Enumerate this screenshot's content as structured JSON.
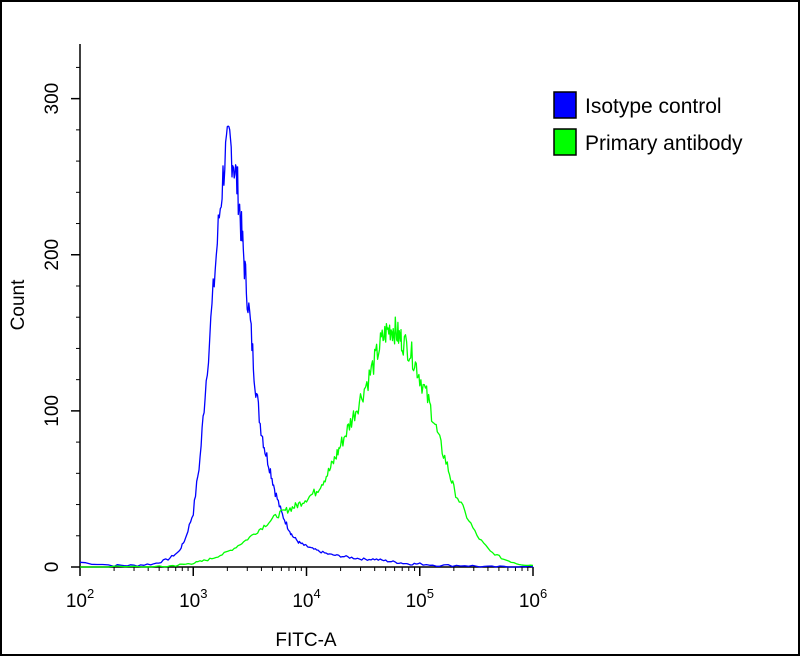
{
  "chart_data": {
    "type": "line",
    "title": "",
    "xlabel": "FITC-A",
    "ylabel": "Count",
    "x_scale": "log",
    "xlim": [
      100,
      1000000
    ],
    "ylim": [
      0,
      335
    ],
    "x_ticks": [
      {
        "value": 100,
        "base": "10",
        "exp": "2"
      },
      {
        "value": 1000,
        "base": "10",
        "exp": "3"
      },
      {
        "value": 10000,
        "base": "10",
        "exp": "4"
      },
      {
        "value": 100000,
        "base": "10",
        "exp": "5"
      },
      {
        "value": 1000000,
        "base": "10",
        "exp": "6"
      }
    ],
    "y_ticks": [
      0,
      100,
      200,
      300
    ],
    "grid": false,
    "legend_position": "top-right",
    "series": [
      {
        "name": "Isotype control",
        "color": "#0000ff",
        "x": [
          100,
          200,
          300,
          450,
          600,
          750,
          850,
          1000,
          1150,
          1300,
          1500,
          1700,
          1900,
          2100,
          2300,
          2500,
          2700,
          2900,
          3200,
          3500,
          3900,
          4300,
          4800,
          5300,
          6000,
          6800,
          7500,
          8500,
          9500,
          11000,
          13000,
          16000,
          20000,
          25000,
          32000,
          40000,
          50000,
          63000,
          80000,
          100000,
          150000,
          250000,
          400000,
          650000,
          1000000
        ],
        "y": [
          3,
          1,
          1,
          2,
          5,
          10,
          18,
          35,
          70,
          120,
          175,
          225,
          262,
          272,
          258,
          240,
          210,
          185,
          155,
          120,
          92,
          75,
          62,
          48,
          35,
          26,
          20,
          16,
          14,
          12,
          10,
          8,
          7,
          6,
          5,
          5,
          4,
          3,
          2,
          2,
          1,
          1,
          0,
          0,
          0
        ]
      },
      {
        "name": "Primary antibody",
        "color": "#00ff00",
        "x": [
          100,
          300,
          500,
          700,
          900,
          1100,
          1400,
          1800,
          2300,
          2900,
          3700,
          4500,
          5500,
          6500,
          7500,
          8500,
          10000,
          12000,
          14000,
          16000,
          18000,
          20000,
          23000,
          26000,
          30000,
          35000,
          40000,
          45000,
          50000,
          55000,
          60000,
          65000,
          70000,
          80000,
          90000,
          100000,
          115000,
          130000,
          150000,
          175000,
          200000,
          250000,
          320000,
          420000,
          550000,
          750000,
          1000000
        ],
        "y": [
          0,
          0,
          0,
          1,
          2,
          3,
          5,
          8,
          12,
          17,
          23,
          28,
          33,
          36,
          38,
          40,
          44,
          48,
          55,
          62,
          70,
          78,
          88,
          97,
          108,
          120,
          132,
          143,
          150,
          153,
          152,
          148,
          145,
          140,
          132,
          122,
          110,
          97,
          80,
          65,
          50,
          35,
          20,
          10,
          5,
          2,
          1
        ]
      }
    ]
  }
}
